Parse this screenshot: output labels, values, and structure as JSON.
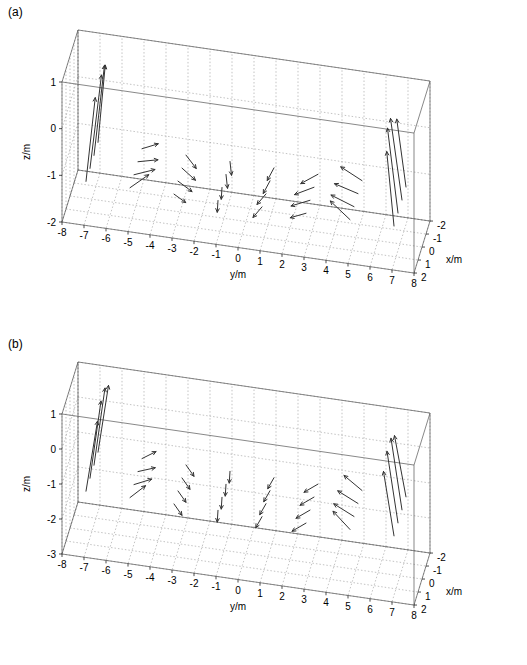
{
  "chart_data": [
    {
      "type": "quiver3d",
      "title": "(a)",
      "xlabel": "x/m",
      "ylabel": "y/m",
      "zlabel": "z/m",
      "color": "#333333",
      "grid": true,
      "xlim": [
        -2,
        2
      ],
      "ylim": [
        -8,
        8
      ],
      "zlim": [
        -2,
        1
      ],
      "xticks": [
        -2,
        -1,
        0,
        1,
        2
      ],
      "yticks": [
        -8,
        -7,
        -6,
        -5,
        -4,
        -3,
        -2,
        -1,
        0,
        1,
        2,
        3,
        4,
        5,
        6,
        7,
        8
      ],
      "zticks": [
        -2,
        -1,
        0,
        1
      ],
      "x": [
        -1.5,
        -0.5,
        0.5,
        1.5,
        -1.5,
        -0.5,
        0.5,
        1.5,
        -1.5,
        -0.5,
        0.5,
        1.5,
        -1.5,
        -0.5,
        0.5,
        1.5,
        -1.5,
        -0.5,
        0.5,
        1.5,
        -1.5,
        -0.5,
        0.5,
        1.5,
        -1.5,
        -0.5,
        0.5,
        1.5,
        -1.5,
        -0.5,
        0.5,
        1.5
      ],
      "y": [
        -7,
        -7,
        -7,
        -7,
        -5,
        -5,
        -5,
        -5,
        -3,
        -3,
        -3,
        -3,
        -1,
        -1,
        -1,
        -1,
        1,
        1,
        1,
        1,
        3,
        3,
        3,
        3,
        5,
        5,
        5,
        5,
        7,
        7,
        7,
        7
      ],
      "z": [
        -1.2,
        -1.2,
        -1.2,
        -1.2,
        -1.2,
        -1.2,
        -1.2,
        -1.2,
        -1.2,
        -1.2,
        -1.2,
        -1.2,
        -1.2,
        -1.2,
        -1.2,
        -1.2,
        -1.2,
        -1.2,
        -1.2,
        -1.2,
        -1.2,
        -1.2,
        -1.2,
        -1.2,
        -1.2,
        -1.2,
        -1.2,
        -1.2,
        -1.2,
        -1.2,
        -1.2,
        -1.2
      ],
      "u": [
        0.1,
        0.05,
        -0.05,
        -0.1,
        0.3,
        0.2,
        0.1,
        0.05,
        0.35,
        0.3,
        0.25,
        0.2,
        0.4,
        0.4,
        0.35,
        0.35,
        0.4,
        0.4,
        0.35,
        0.35,
        0.35,
        0.3,
        0.25,
        0.2,
        0.2,
        0.15,
        0.1,
        0.05,
        0.1,
        0.05,
        -0.05,
        -0.1
      ],
      "v": [
        0.15,
        0.2,
        0.2,
        0.15,
        0.35,
        0.4,
        0.4,
        0.35,
        0.25,
        0.3,
        0.3,
        0.25,
        0.1,
        0.1,
        0.05,
        0.05,
        -0.05,
        -0.05,
        -0.1,
        -0.1,
        -0.25,
        -0.3,
        -0.3,
        -0.25,
        -0.35,
        -0.4,
        -0.4,
        -0.35,
        -0.15,
        -0.2,
        -0.2,
        -0.15
      ],
      "w": [
        0.7,
        0.8,
        0.8,
        0.7,
        0.15,
        0.1,
        0.1,
        0.15,
        0,
        0,
        0,
        0,
        0,
        0,
        0,
        0,
        0,
        0,
        0,
        0,
        0,
        0,
        0,
        0,
        0.15,
        0.1,
        0.1,
        0.15,
        0.6,
        0.7,
        0.7,
        0.6
      ]
    },
    {
      "type": "quiver3d",
      "title": "(b)",
      "xlabel": "x/m",
      "ylabel": "y/m",
      "zlabel": "z/m",
      "color": "#333333",
      "grid": true,
      "xlim": [
        -2,
        2
      ],
      "ylim": [
        -8,
        8
      ],
      "zlim": [
        -3,
        1
      ],
      "xticks": [
        -2,
        -1,
        0,
        1,
        2
      ],
      "yticks": [
        -8,
        -7,
        -6,
        -5,
        -4,
        -3,
        -2,
        -1,
        0,
        1,
        2,
        3,
        4,
        5,
        6,
        7,
        8
      ],
      "zticks": [
        -3,
        -2,
        -1,
        0,
        1
      ],
      "x": [
        -1.5,
        -0.5,
        0.5,
        1.5,
        -1.5,
        -0.5,
        0.5,
        1.5,
        -1.5,
        -0.5,
        0.5,
        1.5,
        -1.5,
        -0.5,
        0.5,
        1.5,
        -1.5,
        -0.5,
        0.5,
        1.5,
        -1.5,
        -0.5,
        0.5,
        1.5,
        -1.5,
        -0.5,
        0.5,
        1.5,
        -1.5,
        -0.5,
        0.5,
        1.5
      ],
      "y": [
        -7,
        -7,
        -7,
        -7,
        -5,
        -5,
        -5,
        -5,
        -3,
        -3,
        -3,
        -3,
        -1,
        -1,
        -1,
        -1,
        1,
        1,
        1,
        1,
        3,
        3,
        3,
        3,
        5,
        5,
        5,
        5,
        7,
        7,
        7,
        7
      ],
      "z": [
        -1.3,
        -1.3,
        -1.3,
        -1.3,
        -1.3,
        -1.3,
        -1.3,
        -1.3,
        -1.3,
        -1.3,
        -1.3,
        -1.3,
        -1.3,
        -1.3,
        -1.3,
        -1.3,
        -1.3,
        -1.3,
        -1.3,
        -1.3,
        -1.3,
        -1.3,
        -1.3,
        -1.3,
        -1.3,
        -1.3,
        -1.3,
        -1.3,
        -1.3,
        -1.3,
        -1.3,
        -1.3
      ],
      "u": [
        0.05,
        0,
        0,
        -0.05,
        0.25,
        0.2,
        0.15,
        0.1,
        0.3,
        0.3,
        0.3,
        0.3,
        0.35,
        0.35,
        0.35,
        0.35,
        0.35,
        0.35,
        0.35,
        0.35,
        0.3,
        0.3,
        0.3,
        0.3,
        0.15,
        0.1,
        0.1,
        0.05,
        0.05,
        0,
        0,
        -0.05
      ],
      "v": [
        0.2,
        0.2,
        0.2,
        0.2,
        0.3,
        0.35,
        0.35,
        0.3,
        0.2,
        0.2,
        0.2,
        0.2,
        0.05,
        0.05,
        0.05,
        0.05,
        -0.05,
        -0.05,
        -0.05,
        -0.05,
        -0.2,
        -0.2,
        -0.2,
        -0.2,
        -0.3,
        -0.35,
        -0.35,
        -0.3,
        -0.2,
        -0.2,
        -0.2,
        -0.2
      ],
      "w": [
        0.8,
        0.9,
        0.9,
        0.8,
        0.2,
        0.15,
        0.15,
        0.2,
        0,
        0,
        0,
        0,
        0,
        0,
        0,
        0,
        0,
        0,
        0,
        0,
        0,
        0,
        0,
        0,
        0.2,
        0.15,
        0.15,
        0.2,
        0.7,
        0.8,
        0.8,
        0.7
      ]
    }
  ]
}
